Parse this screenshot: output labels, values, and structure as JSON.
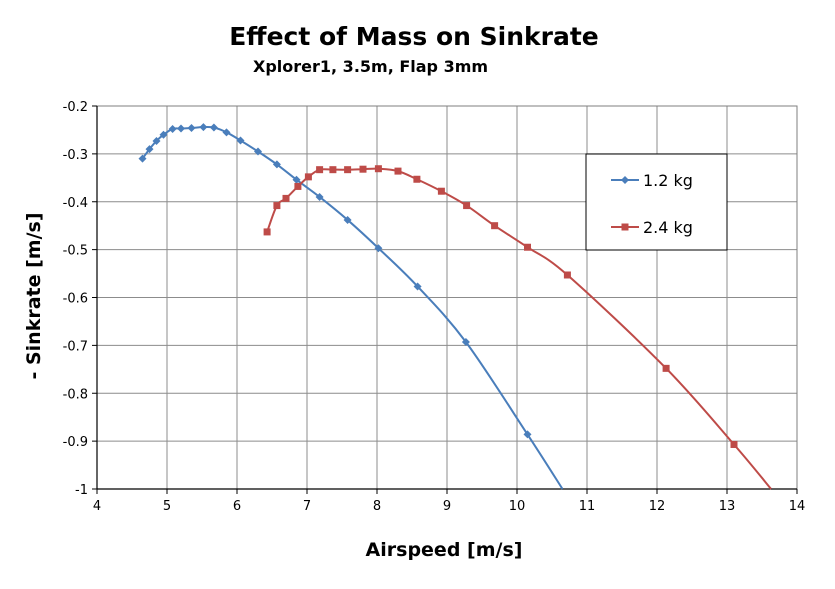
{
  "chart_data": {
    "type": "line",
    "title": "Effect of Mass on Sinkrate",
    "subtitle": "Xplorer1, 3.5m, Flap 3mm",
    "xlabel": "Airspeed [m/s]",
    "ylabel": "- Sinkrate [m/s]",
    "xlim": [
      4,
      14
    ],
    "ylim": [
      -1,
      -0.2
    ],
    "x_ticks": [
      4,
      5,
      6,
      7,
      8,
      9,
      10,
      11,
      12,
      13,
      14
    ],
    "x_tick_labels": [
      "4",
      "5",
      "6",
      "7",
      "8",
      "9",
      "10",
      "11",
      "12",
      "13",
      "14"
    ],
    "y_ticks": [
      -0.2,
      -0.3,
      -0.4,
      -0.5,
      -0.6,
      -0.7,
      -0.8,
      -0.9,
      -1
    ],
    "y_tick_labels": [
      "-0.2",
      "-0.3",
      "-0.4",
      "-0.5",
      "-0.6",
      "-0.7",
      "-0.8",
      "-0.9",
      "-1"
    ],
    "grid": true,
    "legend_position": "right",
    "series": [
      {
        "name": "1.2 kg",
        "color": "#4a7ebb",
        "marker": "diamond",
        "points": [
          [
            4.65,
            -0.31
          ],
          [
            4.75,
            -0.29
          ],
          [
            4.85,
            -0.273
          ],
          [
            4.95,
            -0.26
          ],
          [
            5.08,
            -0.248
          ],
          [
            5.2,
            -0.247
          ],
          [
            5.35,
            -0.246
          ],
          [
            5.52,
            -0.244
          ],
          [
            5.67,
            -0.245
          ],
          [
            5.85,
            -0.255
          ],
          [
            6.05,
            -0.272
          ],
          [
            6.3,
            -0.295
          ],
          [
            6.57,
            -0.322
          ],
          [
            6.85,
            -0.354
          ],
          [
            7.18,
            -0.39
          ],
          [
            7.58,
            -0.438
          ],
          [
            8.02,
            -0.497
          ],
          [
            8.58,
            -0.577
          ],
          [
            9.27,
            -0.693
          ],
          [
            10.15,
            -0.886
          ]
        ],
        "tail": [
          [
            10.65,
            -1.0
          ]
        ]
      },
      {
        "name": "2.4 kg",
        "color": "#be4b48",
        "marker": "square",
        "points": [
          [
            6.43,
            -0.463
          ],
          [
            6.57,
            -0.408
          ],
          [
            6.7,
            -0.393
          ],
          [
            6.87,
            -0.368
          ],
          [
            7.02,
            -0.348
          ],
          [
            7.18,
            -0.333
          ],
          [
            7.37,
            -0.333
          ],
          [
            7.58,
            -0.333
          ],
          [
            7.8,
            -0.332
          ],
          [
            8.02,
            -0.331
          ],
          [
            8.3,
            -0.336
          ],
          [
            8.57,
            -0.353
          ],
          [
            8.92,
            -0.378
          ],
          [
            9.28,
            -0.408
          ],
          [
            9.68,
            -0.45
          ],
          [
            10.15,
            -0.495
          ],
          [
            10.72,
            -0.553
          ],
          [
            12.13,
            -0.748
          ],
          [
            13.1,
            -0.907
          ]
        ],
        "tail": [
          [
            13.63,
            -1.0
          ]
        ]
      }
    ]
  }
}
